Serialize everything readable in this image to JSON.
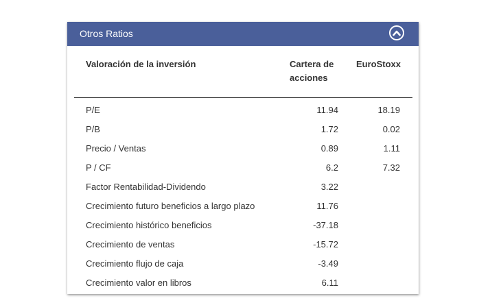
{
  "panel": {
    "title": "Otros Ratios"
  },
  "table": {
    "headers": {
      "label": "Valoración de la inversión",
      "portfolio_line1": "Cartera de",
      "portfolio_line2": "acciones",
      "benchmark": "EuroStoxx"
    },
    "rows": [
      {
        "label": "P/E",
        "portfolio": "11.94",
        "benchmark": "18.19"
      },
      {
        "label": "P/B",
        "portfolio": "1.72",
        "benchmark": "0.02"
      },
      {
        "label": "Precio / Ventas",
        "portfolio": "0.89",
        "benchmark": "1.11"
      },
      {
        "label": "P / CF",
        "portfolio": "6.2",
        "benchmark": "7.32"
      },
      {
        "label": "Factor Rentabilidad-Dividendo",
        "portfolio": "3.22",
        "benchmark": ""
      },
      {
        "label": "Crecimiento futuro beneficios a largo plazo",
        "portfolio": "11.76",
        "benchmark": ""
      },
      {
        "label": "Crecimiento histórico beneficios",
        "portfolio": "-37.18",
        "benchmark": ""
      },
      {
        "label": "Crecimiento de ventas",
        "portfolio": "-15.72",
        "benchmark": ""
      },
      {
        "label": "Crecimiento flujo de caja",
        "portfolio": "-3.49",
        "benchmark": ""
      },
      {
        "label": "Crecimiento valor en libros",
        "portfolio": "6.11",
        "benchmark": ""
      }
    ]
  },
  "icons": {
    "collapse": "chevron-up-icon"
  },
  "colors": {
    "header_bg": "#4a5f9a",
    "header_text": "#ffffff",
    "text": "#333333"
  }
}
